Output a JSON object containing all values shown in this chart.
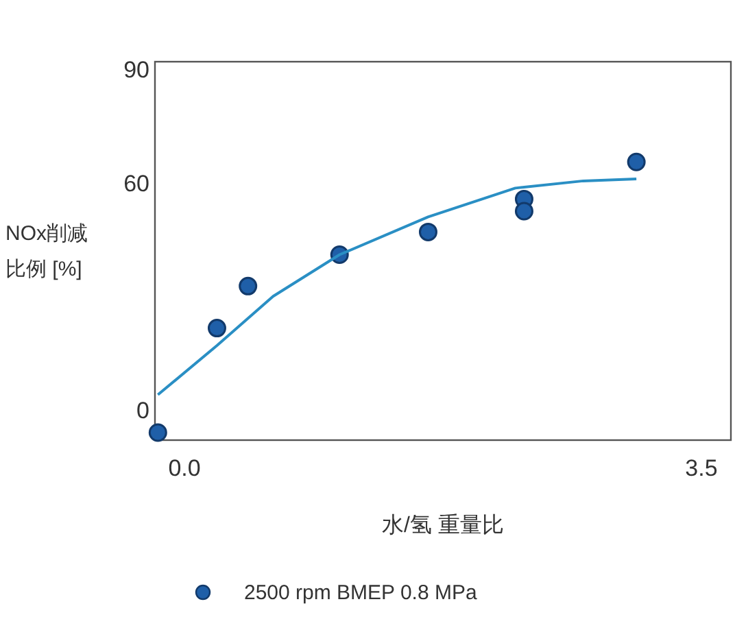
{
  "chart_data": {
    "type": "scatter",
    "xlabel": "水/氢 重量比",
    "ylabel": "NOx削减比例 [%]",
    "xlim": [
      -0.2,
      3.7
    ],
    "ylim": [
      -8,
      92
    ],
    "xticks": [
      {
        "value": 0,
        "label": "0.0"
      },
      3.5
    ],
    "yticks": [
      0,
      60,
      90
    ],
    "grid": false,
    "legend": "bottom",
    "series": [
      {
        "name": "2500 rpm BMEP 0.8 MPa",
        "color": "#1f5fa8",
        "marker": "circle",
        "x": [
          -0.18,
          0.22,
          0.43,
          1.05,
          1.65,
          2.3,
          2.3,
          3.06
        ],
        "values": [
          -6,
          21.6,
          32.7,
          41,
          47,
          55.7,
          52.5,
          65.5
        ]
      },
      {
        "type": "line",
        "color": "#2a8fc4",
        "x": [
          -0.18,
          0.22,
          0.6,
          1.05,
          1.65,
          2.24,
          2.7,
          3.06
        ],
        "values": [
          4,
          17,
          30,
          41,
          51,
          58.6,
          60.5,
          61
        ]
      }
    ]
  }
}
